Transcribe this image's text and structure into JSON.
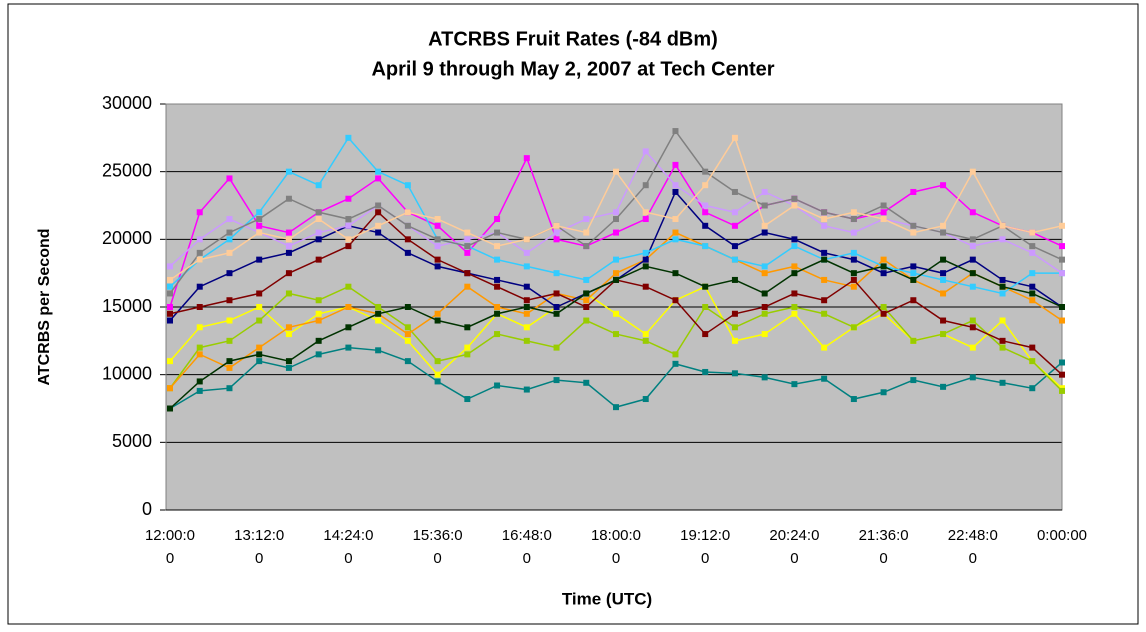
{
  "chart_data": {
    "type": "line",
    "title": "ATCRBS Fruit Rates (-84 dBm)",
    "subtitle": "April 9 through May 2, 2007 at Tech Center",
    "x_label": "Time (UTC)",
    "y_label": "ATCRBS per Second",
    "categories": [
      "12:00:00",
      null,
      null,
      "13:12:00",
      null,
      null,
      "14:24:00",
      null,
      null,
      "15:36:00",
      null,
      null,
      "16:48:00",
      null,
      null,
      "18:00:00",
      null,
      null,
      "19:12:00",
      null,
      null,
      "20:24:00",
      null,
      null,
      "21:36:00",
      null,
      null,
      "22:48:00",
      null,
      null,
      "0:00:00"
    ],
    "ylim": [
      0,
      30000
    ],
    "yticks": [
      0,
      5000,
      10000,
      15000,
      20000,
      25000,
      30000
    ],
    "grid": true,
    "plot_background": "#c0c0c0",
    "series": [
      {
        "color": "#008080",
        "values": [
          7500,
          8800,
          9000,
          11000,
          10500,
          11500,
          12000,
          11800,
          11000,
          9500,
          8200,
          9200,
          8900,
          9600,
          9400,
          7600,
          8200,
          10800,
          10200,
          10100,
          9800,
          9300,
          9700,
          8200,
          8700,
          9600,
          9100,
          9800,
          9400,
          9000,
          10900
        ]
      },
      {
        "color": "#ff00ff",
        "values": [
          15000,
          22000,
          24500,
          21000,
          20500,
          22000,
          23000,
          24500,
          22000,
          21000,
          19000,
          21500,
          26000,
          20000,
          19500,
          20500,
          21500,
          25500,
          22000,
          21000,
          22500,
          23000,
          22000,
          21500,
          22000,
          23500,
          24000,
          22000,
          21000,
          20500,
          19500
        ]
      },
      {
        "color": "#ffff00",
        "values": [
          11000,
          13500,
          14000,
          15000,
          13000,
          14500,
          15000,
          14000,
          12500,
          10000,
          12000,
          14500,
          13500,
          15000,
          16000,
          14500,
          13000,
          15500,
          16500,
          12500,
          13000,
          14500,
          12000,
          13500,
          14500,
          12500,
          13000,
          12000,
          14000,
          11000,
          9000
        ]
      },
      {
        "color": "#99cc00",
        "values": [
          9000,
          12000,
          12500,
          14000,
          16000,
          15500,
          16500,
          15000,
          13500,
          11000,
          11500,
          13000,
          12500,
          12000,
          14000,
          13000,
          12500,
          11500,
          15000,
          13500,
          14500,
          15000,
          14500,
          13500,
          15000,
          12500,
          13000,
          14000,
          12000,
          11000,
          8800
        ]
      },
      {
        "color": "#ff9900",
        "values": [
          9000,
          11500,
          10500,
          12000,
          13500,
          14000,
          15000,
          14500,
          13000,
          14500,
          16500,
          15000,
          14500,
          16000,
          15500,
          17500,
          18500,
          20500,
          19500,
          18500,
          17500,
          18000,
          17000,
          16500,
          18500,
          17000,
          16000,
          17500,
          16500,
          15500,
          14000
        ]
      },
      {
        "color": "#000080",
        "values": [
          14000,
          16500,
          17500,
          18500,
          19000,
          20000,
          21000,
          20500,
          19000,
          18000,
          17500,
          17000,
          16500,
          15000,
          16000,
          17000,
          18500,
          23500,
          21000,
          19500,
          20500,
          20000,
          19000,
          18500,
          17500,
          18000,
          17500,
          18500,
          17000,
          16500,
          15000
        ]
      },
      {
        "color": "#800000",
        "values": [
          14500,
          15000,
          15500,
          16000,
          17500,
          18500,
          19500,
          22000,
          20000,
          18500,
          17500,
          16500,
          15500,
          16000,
          15000,
          17000,
          16500,
          15500,
          13000,
          14500,
          15000,
          16000,
          15500,
          17000,
          14500,
          15500,
          14000,
          13500,
          12500,
          12000,
          10000
        ]
      },
      {
        "color": "#33ccff",
        "values": [
          16500,
          18500,
          20000,
          22000,
          25000,
          24000,
          27500,
          25000,
          24000,
          20000,
          19500,
          18500,
          18000,
          17500,
          17000,
          18500,
          19000,
          20000,
          19500,
          18500,
          18000,
          19500,
          18500,
          19000,
          18000,
          17500,
          17000,
          16500,
          16000,
          17500,
          17500
        ]
      },
      {
        "color": "#cc99ff",
        "values": [
          18000,
          20000,
          21500,
          20500,
          19500,
          20500,
          21000,
          22500,
          21000,
          19500,
          20000,
          20500,
          19000,
          20500,
          21500,
          22000,
          26500,
          24000,
          22500,
          22000,
          23500,
          22500,
          21000,
          20500,
          21500,
          21000,
          20500,
          19500,
          20000,
          19000,
          17500
        ]
      },
      {
        "color": "#003300",
        "values": [
          7500,
          9500,
          11000,
          11500,
          11000,
          12500,
          13500,
          14500,
          15000,
          14000,
          13500,
          14500,
          15000,
          14500,
          16000,
          17000,
          18000,
          17500,
          16500,
          17000,
          16000,
          17500,
          18500,
          17500,
          18000,
          17000,
          18500,
          17500,
          16500,
          16000,
          15000
        ]
      },
      {
        "color": "#808080",
        "values": [
          16000,
          19000,
          20500,
          21500,
          23000,
          22000,
          21500,
          22500,
          21000,
          20000,
          19500,
          20500,
          20000,
          21000,
          19500,
          21500,
          24000,
          28000,
          25000,
          23500,
          22500,
          23000,
          22000,
          21500,
          22500,
          21000,
          20500,
          20000,
          21000,
          19500,
          18500
        ]
      },
      {
        "color": "#ffcc99",
        "values": [
          17000,
          18500,
          19000,
          20500,
          20000,
          21500,
          20000,
          21000,
          22000,
          21500,
          20500,
          19500,
          20000,
          21000,
          20500,
          25000,
          22000,
          21500,
          24000,
          27500,
          21000,
          22500,
          21500,
          22000,
          21500,
          20500,
          21000,
          25000,
          21000,
          20500,
          21000
        ]
      }
    ]
  }
}
